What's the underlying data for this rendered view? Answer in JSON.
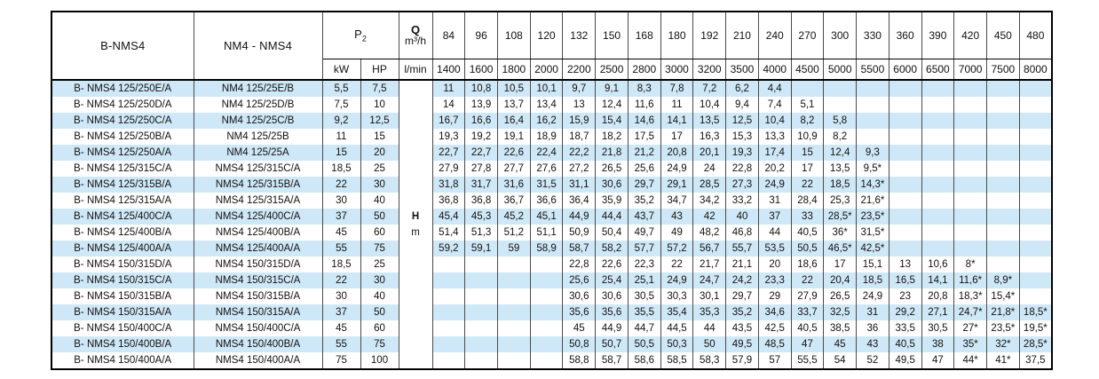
{
  "table": {
    "header": {
      "col_b_nms4": "B-NMS4",
      "col_nm4_nms4": "NM4 - NMS4",
      "p2_label": "P",
      "p2_sub": "2",
      "q_label": "Q",
      "q_unit": "m³/h",
      "kw": "kW",
      "hp": "HP",
      "lmin": "l/min",
      "flow_m3h": [
        "84",
        "96",
        "108",
        "120",
        "132",
        "150",
        "168",
        "180",
        "192",
        "210",
        "240",
        "270",
        "300",
        "330",
        "360",
        "390",
        "420",
        "450",
        "480"
      ],
      "flow_lmin": [
        "1400",
        "1600",
        "1800",
        "2000",
        "2200",
        "2500",
        "2800",
        "3000",
        "3200",
        "3500",
        "4000",
        "4500",
        "5000",
        "5500",
        "6000",
        "6500",
        "7000",
        "7500",
        "8000"
      ]
    },
    "head_axis": {
      "symbol": "H",
      "unit": "m",
      "symbol_row": 8,
      "unit_row": 9
    },
    "colors": {
      "stripe": "#cfe8f7",
      "grid": "#4a4a4a",
      "border": "#000000",
      "text": "#111111"
    },
    "rows": [
      {
        "b": "B- NMS4 125/250E/A",
        "nm": "NM4 125/25E/B",
        "kw": "5,5",
        "hp": "7,5",
        "v": [
          "11",
          "10,8",
          "10,5",
          "10,1",
          "9,7",
          "9,1",
          "8,3",
          "7,8",
          "7,2",
          "6,2",
          "4,4",
          "",
          "",
          "",
          "",
          "",
          "",
          "",
          ""
        ]
      },
      {
        "b": "B- NMS4 125/250D/A",
        "nm": "NM4 125/25D/B",
        "kw": "7,5",
        "hp": "10",
        "v": [
          "14",
          "13,9",
          "13,7",
          "13,4",
          "13",
          "12,4",
          "11,6",
          "11",
          "10,4",
          "9,4",
          "7,4",
          "5,1",
          "",
          "",
          "",
          "",
          "",
          "",
          ""
        ]
      },
      {
        "b": "B- NMS4 125/250C/A",
        "nm": "NM4 125/25C/B",
        "kw": "9,2",
        "hp": "12,5",
        "v": [
          "16,7",
          "16,6",
          "16,4",
          "16,2",
          "15,9",
          "15,4",
          "14,6",
          "14,1",
          "13,5",
          "12,5",
          "10,4",
          "8,2",
          "5,8",
          "",
          "",
          "",
          "",
          "",
          ""
        ]
      },
      {
        "b": "B- NMS4 125/250B/A",
        "nm": "NM4 125/25B",
        "kw": "11",
        "hp": "15",
        "v": [
          "19,3",
          "19,2",
          "19,1",
          "18,9",
          "18,7",
          "18,2",
          "17,5",
          "17",
          "16,3",
          "15,3",
          "13,3",
          "10,9",
          "8,2",
          "",
          "",
          "",
          "",
          "",
          ""
        ]
      },
      {
        "b": "B- NMS4 125/250A/A",
        "nm": "NM4 125/25A",
        "kw": "15",
        "hp": "20",
        "v": [
          "22,7",
          "22,7",
          "22,6",
          "22,4",
          "22,2",
          "21,8",
          "21,2",
          "20,8",
          "20,1",
          "19,3",
          "17,4",
          "15",
          "12,4",
          "9,3",
          "",
          "",
          "",
          "",
          ""
        ]
      },
      {
        "b": "B- NMS4 125/315C/A",
        "nm": "NMS4 125/315C/A",
        "kw": "18,5",
        "hp": "25",
        "v": [
          "27,9",
          "27,8",
          "27,7",
          "27,6",
          "27,2",
          "26,5",
          "25,6",
          "24,9",
          "24",
          "22,8",
          "20,2",
          "17",
          "13,5",
          "9,5*",
          "",
          "",
          "",
          "",
          ""
        ]
      },
      {
        "b": "B- NMS4 125/315B/A",
        "nm": "NMS4 125/315B/A",
        "kw": "22",
        "hp": "30",
        "v": [
          "31,8",
          "31,7",
          "31,6",
          "31,5",
          "31,1",
          "30,6",
          "29,7",
          "29,1",
          "28,5",
          "27,3",
          "24,9",
          "22",
          "18,5",
          "14,3*",
          "",
          "",
          "",
          "",
          ""
        ]
      },
      {
        "b": "B- NMS4 125/315A/A",
        "nm": "NMS4 125/315A/A",
        "kw": "30",
        "hp": "40",
        "v": [
          "36,8",
          "36,8",
          "36,7",
          "36,6",
          "36,4",
          "35,9",
          "35,2",
          "34,7",
          "34,2",
          "33,2",
          "31",
          "28,4",
          "25,3",
          "21,6*",
          "",
          "",
          "",
          "",
          ""
        ]
      },
      {
        "b": "B- NMS4 125/400C/A",
        "nm": "NMS4 125/400C/A",
        "kw": "37",
        "hp": "50",
        "v": [
          "45,4",
          "45,3",
          "45,2",
          "45,1",
          "44,9",
          "44,4",
          "43,7",
          "43",
          "42",
          "40",
          "37",
          "33",
          "28,5*",
          "23,5*",
          "",
          "",
          "",
          "",
          ""
        ]
      },
      {
        "b": "B- NMS4 125/400B/A",
        "nm": "NMS4 125/400B/A",
        "kw": "45",
        "hp": "60",
        "v": [
          "51,4",
          "51,3",
          "51,2",
          "51,1",
          "50,9",
          "50,4",
          "49,7",
          "49",
          "48,2",
          "46,8",
          "44",
          "40,5",
          "36*",
          "31,5*",
          "",
          "",
          "",
          "",
          ""
        ]
      },
      {
        "b": "B- NMS4 125/400A/A",
        "nm": "NMS4 125/400A/A",
        "kw": "55",
        "hp": "75",
        "v": [
          "59,2",
          "59,1",
          "59",
          "58,9",
          "58,7",
          "58,2",
          "57,7",
          "57,2",
          "56,7",
          "55,7",
          "53,5",
          "50,5",
          "46,5*",
          "42,5*",
          "",
          "",
          "",
          "",
          ""
        ]
      },
      {
        "b": "B- NMS4 150/315D/A",
        "nm": "NMS4 150/315D/A",
        "kw": "18,5",
        "hp": "25",
        "v": [
          "",
          "",
          "",
          "",
          "22,8",
          "22,6",
          "22,3",
          "22",
          "21,7",
          "21,1",
          "20",
          "18,6",
          "17",
          "15,1",
          "13",
          "10,6",
          "8*",
          "",
          ""
        ]
      },
      {
        "b": "B- NMS4 150/315C/A",
        "nm": "NMS4 150/315C/A",
        "kw": "22",
        "hp": "30",
        "v": [
          "",
          "",
          "",
          "",
          "25,6",
          "25,4",
          "25,1",
          "24,9",
          "24,7",
          "24,2",
          "23,3",
          "22",
          "20,4",
          "18,5",
          "16,5",
          "14,1",
          "11,6*",
          "8,9*",
          ""
        ]
      },
      {
        "b": "B- NMS4 150/315B/A",
        "nm": "NMS4 150/315B/A",
        "kw": "30",
        "hp": "40",
        "v": [
          "",
          "",
          "",
          "",
          "30,6",
          "30,6",
          "30,5",
          "30,3",
          "30,1",
          "29,7",
          "29",
          "27,9",
          "26,5",
          "24,9",
          "23",
          "20,8",
          "18,3*",
          "15,4*",
          ""
        ]
      },
      {
        "b": "B- NMS4 150/315A/A",
        "nm": "NMS4 150/315A/A",
        "kw": "37",
        "hp": "50",
        "v": [
          "",
          "",
          "",
          "",
          "35,6",
          "35,6",
          "35,5",
          "35,4",
          "35,3",
          "35,2",
          "34,6",
          "33,7",
          "32,5",
          "31",
          "29,2",
          "27,1",
          "24,7*",
          "21,8*",
          "18,5*"
        ]
      },
      {
        "b": "B- NMS4 150/400C/A",
        "nm": "NMS4 150/400C/A",
        "kw": "45",
        "hp": "60",
        "v": [
          "",
          "",
          "",
          "",
          "45",
          "44,9",
          "44,7",
          "44,5",
          "44",
          "43,5",
          "42,5",
          "40,5",
          "38,5",
          "36",
          "33,5",
          "30,5",
          "27*",
          "23,5*",
          "19,5*"
        ]
      },
      {
        "b": "B- NMS4 150/400B/A",
        "nm": "NMS4 150/400B/A",
        "kw": "55",
        "hp": "75",
        "v": [
          "",
          "",
          "",
          "",
          "50,8",
          "50,7",
          "50,5",
          "50,3",
          "50",
          "49,5",
          "48,5",
          "47",
          "45",
          "43",
          "40,5",
          "38",
          "35*",
          "32*",
          "28,5*"
        ]
      },
      {
        "b": "B- NMS4 150/400A/A",
        "nm": "NMS4 150/400A/A",
        "kw": "75",
        "hp": "100",
        "v": [
          "",
          "",
          "",
          "",
          "58,8",
          "58,7",
          "58,6",
          "58,5",
          "58,3",
          "57,9",
          "57",
          "55,5",
          "54",
          "52",
          "49,5",
          "47",
          "44*",
          "41*",
          "37,5"
        ]
      }
    ]
  }
}
